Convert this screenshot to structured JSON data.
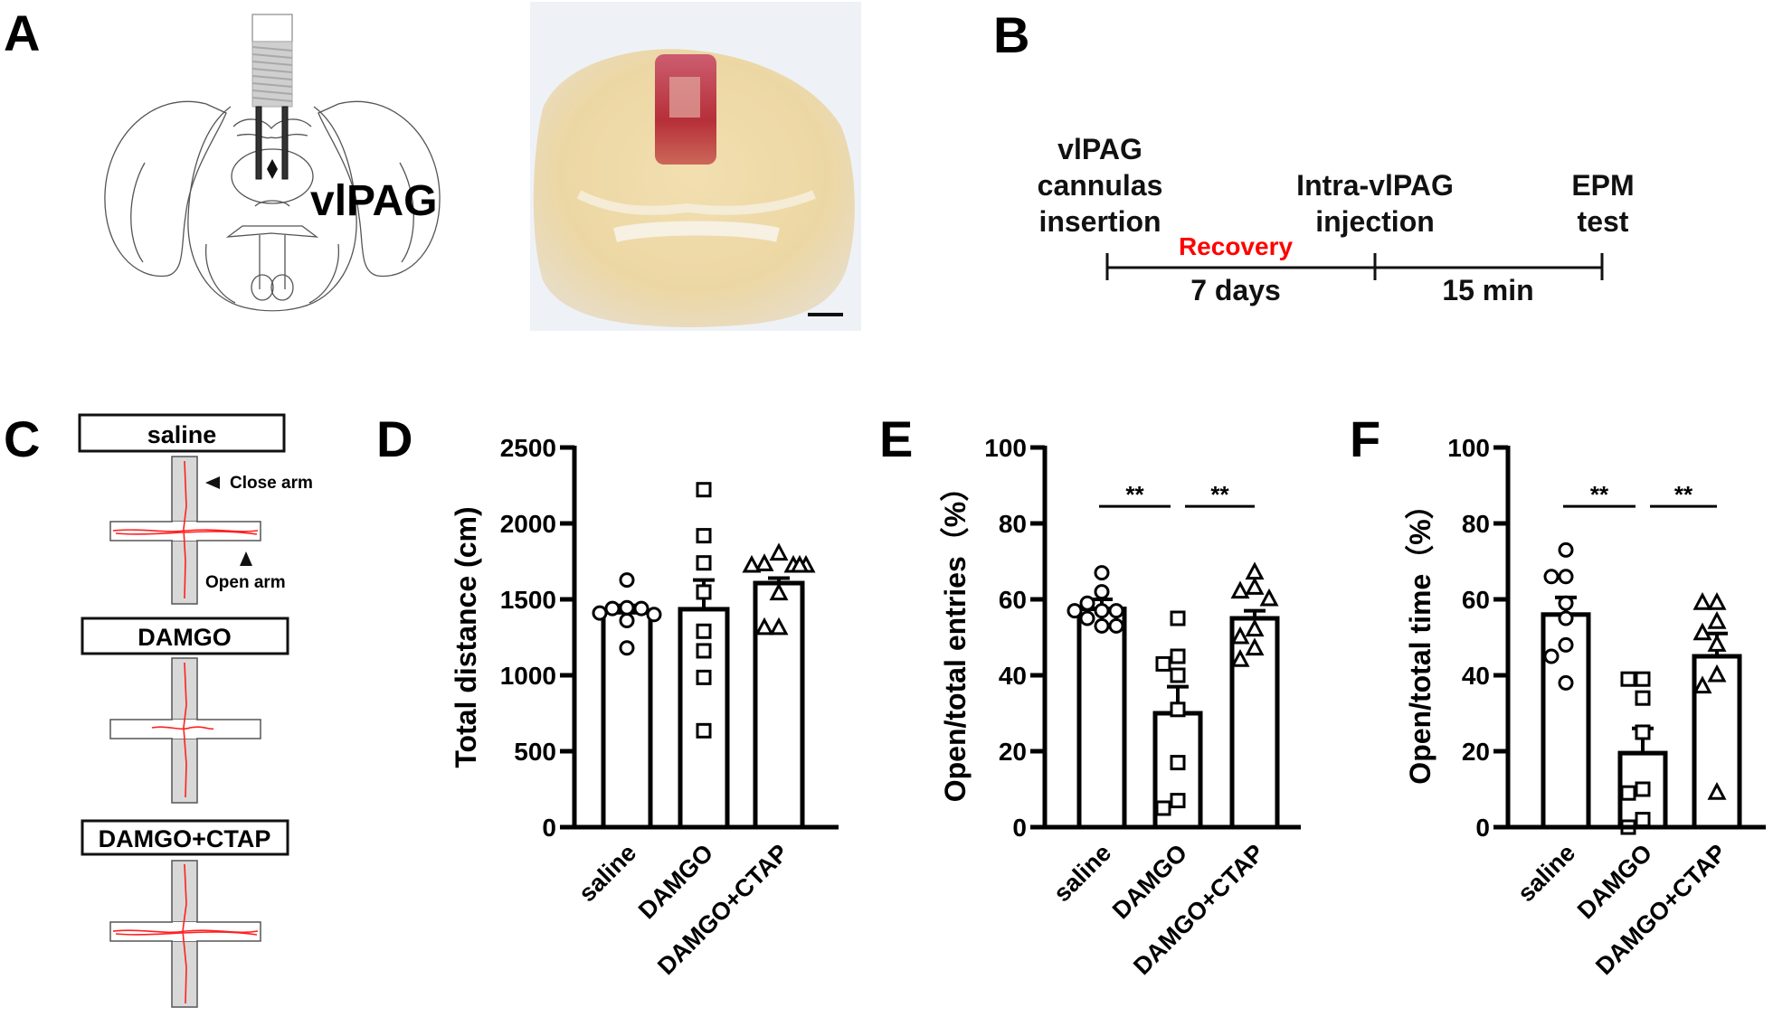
{
  "panels": {
    "A": "A",
    "B": "B",
    "C": "C",
    "D": "D",
    "E": "E",
    "F": "F"
  },
  "panel_a": {
    "region_label": "vlPAG"
  },
  "panel_b": {
    "events": [
      {
        "lines": [
          "vlPAG",
          "cannulas",
          "insertion"
        ]
      },
      {
        "lines": [
          "Intra-vlPAG",
          "injection"
        ]
      },
      {
        "lines": [
          "EPM",
          "test"
        ]
      }
    ],
    "phase_label": "Recovery",
    "intervals": [
      "7 days",
      "15 min"
    ],
    "phase_color": "#ff0000"
  },
  "panel_c": {
    "groups": [
      "saline",
      "DAMGO",
      "DAMGO+CTAP"
    ],
    "close_arm_label": "Close arm",
    "open_arm_label": "Open arm",
    "track_color": "#ff2020"
  },
  "chart_data": [
    {
      "panel": "D",
      "type": "bar",
      "title": "",
      "xlabel": "",
      "ylabel": "Total distance (cm)",
      "ylim": [
        0,
        2500
      ],
      "yticks": [
        0,
        500,
        1000,
        1500,
        2000,
        2500
      ],
      "categories": [
        "saline",
        "DAMGO",
        "DAMGO+CTAP"
      ],
      "markers": [
        "circle",
        "square",
        "triangle"
      ],
      "series": [
        {
          "name": "mean",
          "values": [
            1415,
            1435,
            1607
          ]
        }
      ],
      "sem_upper": [
        1460,
        1627,
        1640
      ],
      "points": [
        [
          1627,
          1445,
          1440,
          1440,
          1410,
          1400,
          1360,
          1180
        ],
        [
          2222,
          1919,
          1740,
          1548,
          1290,
          1161,
          986,
          635
        ],
        [
          1800,
          1730,
          1720,
          1720,
          1720,
          1720,
          1538,
          1310,
          1310
        ]
      ],
      "significance": []
    },
    {
      "panel": "E",
      "type": "bar",
      "title": "",
      "xlabel": "",
      "ylabel": "Open/total entries（%）",
      "ylim": [
        0,
        100
      ],
      "yticks": [
        0,
        20,
        40,
        60,
        80,
        100
      ],
      "categories": [
        "saline",
        "DAMGO",
        "DAMGO+CTAP"
      ],
      "markers": [
        "circle",
        "square",
        "triangle"
      ],
      "series": [
        {
          "name": "mean",
          "values": [
            57.5,
            30,
            55
          ]
        }
      ],
      "sem_upper": [
        60,
        37,
        57
      ],
      "points": [
        [
          67,
          62,
          59,
          57,
          57,
          57,
          55,
          53,
          53
        ],
        [
          55,
          45,
          43,
          40,
          31,
          17,
          7,
          5
        ],
        [
          67,
          63,
          62,
          60,
          52,
          50,
          47,
          44
        ]
      ],
      "significance": [
        {
          "from": 0,
          "to": 1,
          "label": "**",
          "y": 84.5
        },
        {
          "from": 1,
          "to": 2,
          "label": "**",
          "y": 84.5
        }
      ]
    },
    {
      "panel": "F",
      "type": "bar",
      "title": "",
      "xlabel": "",
      "ylabel": "Open/total time（%）",
      "ylim": [
        0,
        100
      ],
      "yticks": [
        0,
        20,
        40,
        60,
        80,
        100
      ],
      "categories": [
        "saline",
        "DAMGO",
        "DAMGO+CTAP"
      ],
      "markers": [
        "circle",
        "square",
        "triangle"
      ],
      "series": [
        {
          "name": "mean",
          "values": [
            56,
            19.5,
            45
          ]
        }
      ],
      "sem_upper": [
        60.5,
        26,
        51
      ],
      "points": [
        [
          73,
          66,
          66,
          59,
          55,
          48,
          45,
          38
        ],
        [
          39,
          39,
          34,
          25,
          10,
          9,
          2,
          0
        ],
        [
          59,
          59,
          54,
          51,
          48,
          40,
          37,
          9
        ]
      ],
      "significance": [
        {
          "from": 0,
          "to": 1,
          "label": "**",
          "y": 84.5
        },
        {
          "from": 1,
          "to": 2,
          "label": "**",
          "y": 84.5
        }
      ]
    }
  ]
}
